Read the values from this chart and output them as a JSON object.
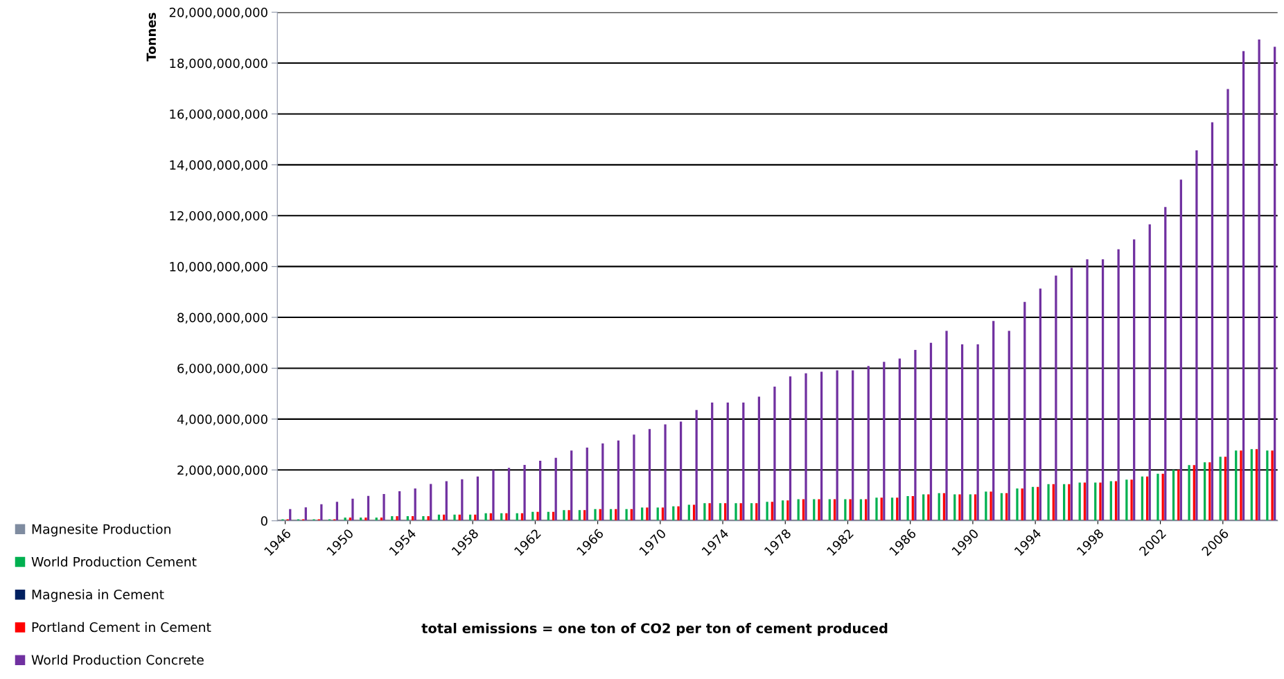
{
  "chart_data": {
    "type": "bar",
    "ylabel": "Tonnes",
    "categories": [
      "1946",
      null,
      null,
      null,
      "1950",
      null,
      null,
      null,
      "1954",
      null,
      null,
      null,
      "1958",
      null,
      null,
      null,
      "1962",
      null,
      null,
      null,
      "1966",
      null,
      null,
      null,
      "1970",
      null,
      null,
      null,
      "1974",
      null,
      null,
      null,
      "1978",
      null,
      null,
      null,
      "1982",
      null,
      null,
      null,
      "1986",
      null,
      null,
      null,
      "1990",
      null,
      null,
      null,
      "1994",
      null,
      null,
      null,
      "1998",
      null,
      null,
      null,
      "2002",
      null,
      null,
      null,
      "2006",
      null,
      null,
      null
    ],
    "series": [
      {
        "name": "Magnesite Production",
        "color": "#7f8ca0",
        "values": [
          0,
          0,
          0,
          0,
          0,
          0,
          0,
          0,
          0,
          0,
          0,
          0,
          0,
          0,
          0,
          0,
          0,
          0,
          0,
          0,
          0,
          0,
          0,
          0,
          0,
          0,
          0,
          0,
          0,
          0,
          0,
          0,
          0,
          0,
          0,
          0,
          0,
          0,
          0,
          0,
          0,
          0,
          0,
          0,
          0,
          0,
          0,
          0,
          0,
          0,
          0,
          0,
          0,
          0,
          0,
          0,
          0,
          0,
          0,
          0,
          0,
          0,
          0,
          0
        ]
      },
      {
        "name": "World Production Cement",
        "color": "#00b050",
        "values": [
          60000000,
          60000000,
          60000000,
          60000000,
          130000000,
          130000000,
          130000000,
          180000000,
          180000000,
          180000000,
          240000000,
          240000000,
          240000000,
          300000000,
          300000000,
          300000000,
          350000000,
          350000000,
          420000000,
          420000000,
          460000000,
          460000000,
          460000000,
          520000000,
          520000000,
          570000000,
          630000000,
          690000000,
          690000000,
          690000000,
          690000000,
          750000000,
          800000000,
          850000000,
          850000000,
          850000000,
          850000000,
          850000000,
          910000000,
          910000000,
          970000000,
          1040000000,
          1090000000,
          1040000000,
          1040000000,
          1150000000,
          1090000000,
          1270000000,
          1330000000,
          1440000000,
          1440000000,
          1500000000,
          1500000000,
          1560000000,
          1620000000,
          1740000000,
          1850000000,
          2010000000,
          2190000000,
          2300000000,
          2520000000,
          2760000000,
          2820000000,
          2760000000
        ]
      },
      {
        "name": "Magnesia in Cement",
        "color": "#002060",
        "values": [
          0,
          0,
          0,
          0,
          0,
          0,
          0,
          0,
          0,
          0,
          0,
          0,
          0,
          0,
          0,
          0,
          0,
          0,
          0,
          0,
          0,
          0,
          0,
          0,
          0,
          0,
          0,
          0,
          0,
          0,
          0,
          0,
          0,
          0,
          0,
          0,
          0,
          0,
          0,
          0,
          0,
          0,
          0,
          0,
          0,
          0,
          0,
          0,
          0,
          0,
          0,
          0,
          0,
          0,
          0,
          0,
          0,
          0,
          0,
          0,
          0,
          0,
          0,
          0
        ]
      },
      {
        "name": "Portland Cement in Cement",
        "color": "#ff0000",
        "values": [
          60000000,
          60000000,
          60000000,
          60000000,
          130000000,
          130000000,
          130000000,
          180000000,
          180000000,
          180000000,
          240000000,
          240000000,
          240000000,
          300000000,
          300000000,
          300000000,
          350000000,
          350000000,
          420000000,
          420000000,
          460000000,
          460000000,
          460000000,
          520000000,
          520000000,
          570000000,
          630000000,
          690000000,
          690000000,
          690000000,
          690000000,
          750000000,
          800000000,
          850000000,
          850000000,
          850000000,
          850000000,
          850000000,
          910000000,
          910000000,
          970000000,
          1040000000,
          1090000000,
          1040000000,
          1040000000,
          1150000000,
          1090000000,
          1270000000,
          1330000000,
          1440000000,
          1440000000,
          1500000000,
          1500000000,
          1560000000,
          1620000000,
          1740000000,
          1850000000,
          2010000000,
          2190000000,
          2300000000,
          2520000000,
          2760000000,
          2820000000,
          2760000000
        ]
      },
      {
        "name": "World Production Concrete",
        "color": "#7030a0",
        "values": [
          460000000,
          530000000,
          650000000,
          750000000,
          870000000,
          980000000,
          1050000000,
          1160000000,
          1270000000,
          1450000000,
          1560000000,
          1630000000,
          1740000000,
          2000000000,
          2080000000,
          2200000000,
          2360000000,
          2480000000,
          2760000000,
          2880000000,
          3040000000,
          3160000000,
          3390000000,
          3610000000,
          3790000000,
          3900000000,
          4360000000,
          4650000000,
          4650000000,
          4650000000,
          4880000000,
          5280000000,
          5680000000,
          5800000000,
          5860000000,
          5920000000,
          5920000000,
          6090000000,
          6250000000,
          6380000000,
          6720000000,
          7000000000,
          7470000000,
          6940000000,
          6940000000,
          7860000000,
          7470000000,
          8610000000,
          9130000000,
          9640000000,
          9950000000,
          10280000000,
          10280000000,
          10680000000,
          11070000000,
          11660000000,
          12340000000,
          13420000000,
          14570000000,
          15670000000,
          16980000000,
          18470000000,
          18930000000,
          18640000000
        ]
      }
    ],
    "ylim": [
      0,
      20000000000
    ],
    "yticks": [
      0,
      {
        "value": 2000000000,
        "label": "2,000,000,000"
      },
      {
        "value": 4000000000,
        "label": "4,000,000,000"
      },
      {
        "value": 6000000000,
        "label": "6,000,000,000"
      },
      {
        "value": 8000000000,
        "label": "8,000,000,000"
      },
      {
        "value": 10000000000,
        "label": "10,000,000,000"
      },
      {
        "value": 12000000000,
        "label": "12,000,000,000"
      },
      {
        "value": 14000000000,
        "label": "14,000,000,000"
      },
      {
        "value": 16000000000,
        "label": "16,000,000,000"
      },
      {
        "value": 18000000000,
        "label": "18,000,000,000"
      },
      {
        "value": 20000000000,
        "label": "20,000,000,000"
      }
    ],
    "grid": "y",
    "legend": "left",
    "annotations": [
      "total emissions = one ton of CO2 per ton of cement produced"
    ]
  }
}
